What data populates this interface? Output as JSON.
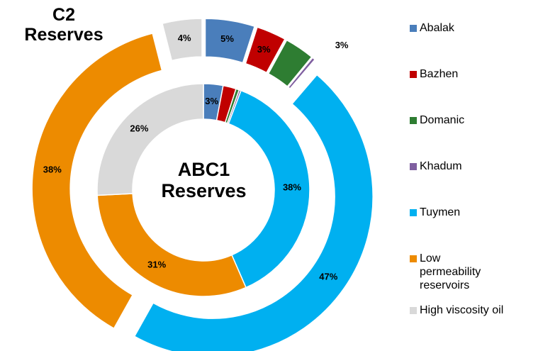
{
  "chart_data": {
    "type": "donut",
    "categories": [
      "Abalak",
      "Bazhen",
      "Domanic",
      "Khadum",
      "Tuymen",
      "Low permeability reservoirs",
      "High viscosity oil"
    ],
    "colors": [
      "#4a7ebb",
      "#c00000",
      "#2e7d32",
      "#7f5fa0",
      "#00b0f0",
      "#ed8b00",
      "#d9d9d9"
    ],
    "series": [
      {
        "name": "ABC1 Reserves",
        "values": [
          3,
          2,
          0.5,
          0.3,
          38,
          31,
          26
        ],
        "value_labels": [
          "3%",
          null,
          null,
          null,
          "38%",
          "31%",
          "26%"
        ]
      },
      {
        "name": "C2 Reserves",
        "values": [
          5,
          3,
          3,
          0.3,
          47,
          38,
          4
        ],
        "value_labels": [
          "5%",
          "3%",
          "3%",
          null,
          "47%",
          "38%",
          "4%"
        ]
      }
    ]
  }
}
